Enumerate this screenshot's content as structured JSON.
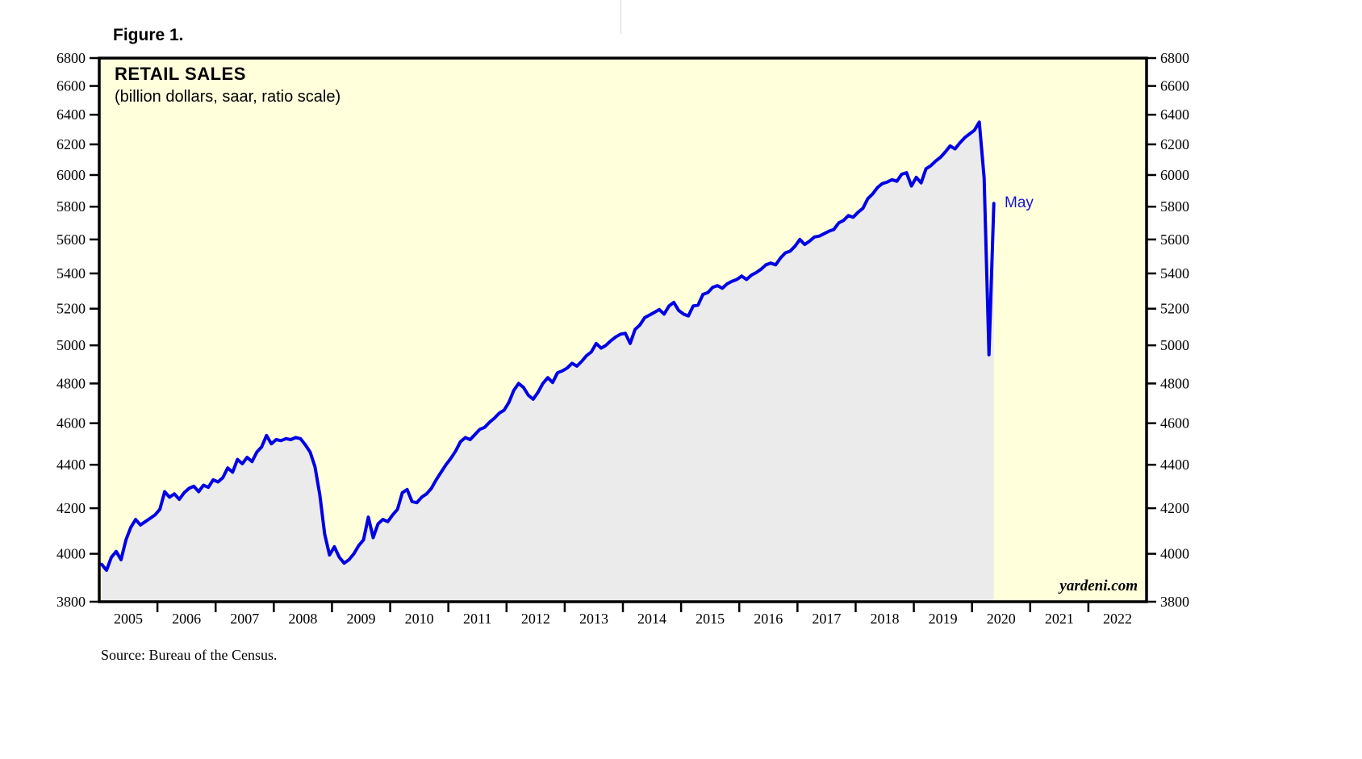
{
  "figure_label": "Figure 1.",
  "source_note": "Source: Bureau of the Census.",
  "chart_data": {
    "type": "line",
    "title": "RETAIL SALES",
    "subtitle": "(billion dollars, saar, ratio scale)",
    "watermark": "yardeni.com",
    "y_scale": "log",
    "ylim": [
      3800,
      6800
    ],
    "y_ticks": [
      3800,
      4000,
      4200,
      4400,
      4600,
      4800,
      5000,
      5200,
      5400,
      5600,
      5800,
      6000,
      6200,
      6400,
      6600,
      6800
    ],
    "x_tick_labels": [
      "2005",
      "2006",
      "2007",
      "2008",
      "2009",
      "2010",
      "2011",
      "2012",
      "2013",
      "2014",
      "2015",
      "2016",
      "2017",
      "2018",
      "2019",
      "2020",
      "2021",
      "2022"
    ],
    "x_range_years": [
      2005,
      2023
    ],
    "grid": "off",
    "legend": "none",
    "annotation": {
      "label": "May",
      "value": 5820,
      "date": "2020-05"
    },
    "colors": {
      "line": "#0000E6",
      "fill": "#EBEBEB",
      "plot_background": "#FFFFDC",
      "frame": "#000000",
      "annotation": "#1414D2"
    },
    "series": [
      {
        "name": "Retail Sales",
        "start_year": 2005,
        "start_month": 1,
        "frequency": "monthly",
        "values": [
          3955,
          3930,
          3985,
          4010,
          3975,
          4060,
          4115,
          4150,
          4125,
          4140,
          4155,
          4170,
          4195,
          4275,
          4250,
          4265,
          4240,
          4270,
          4290,
          4300,
          4275,
          4305,
          4295,
          4330,
          4320,
          4340,
          4385,
          4365,
          4425,
          4405,
          4435,
          4415,
          4460,
          4485,
          4540,
          4500,
          4520,
          4515,
          4525,
          4520,
          4530,
          4525,
          4495,
          4460,
          4390,
          4260,
          4085,
          3995,
          4030,
          3985,
          3960,
          3975,
          4000,
          4035,
          4060,
          4160,
          4070,
          4130,
          4150,
          4140,
          4170,
          4195,
          4270,
          4285,
          4230,
          4225,
          4250,
          4265,
          4290,
          4330,
          4365,
          4400,
          4430,
          4465,
          4510,
          4530,
          4520,
          4545,
          4570,
          4580,
          4605,
          4625,
          4650,
          4665,
          4705,
          4765,
          4800,
          4780,
          4740,
          4720,
          4755,
          4800,
          4830,
          4805,
          4855,
          4865,
          4880,
          4905,
          4890,
          4915,
          4945,
          4965,
          5010,
          4985,
          5000,
          5025,
          5045,
          5060,
          5065,
          5010,
          5085,
          5110,
          5150,
          5165,
          5180,
          5195,
          5170,
          5215,
          5235,
          5190,
          5170,
          5160,
          5215,
          5220,
          5280,
          5290,
          5320,
          5330,
          5315,
          5340,
          5355,
          5365,
          5385,
          5365,
          5390,
          5405,
          5425,
          5450,
          5460,
          5450,
          5490,
          5520,
          5530,
          5560,
          5600,
          5570,
          5590,
          5615,
          5620,
          5635,
          5650,
          5660,
          5700,
          5715,
          5745,
          5735,
          5765,
          5790,
          5850,
          5880,
          5920,
          5945,
          5955,
          5970,
          5960,
          6005,
          6015,
          5930,
          5985,
          5950,
          6040,
          6060,
          6090,
          6115,
          6150,
          6190,
          6170,
          6210,
          6245,
          6270,
          6295,
          6350,
          5980,
          4950,
          5820
        ]
      }
    ]
  }
}
